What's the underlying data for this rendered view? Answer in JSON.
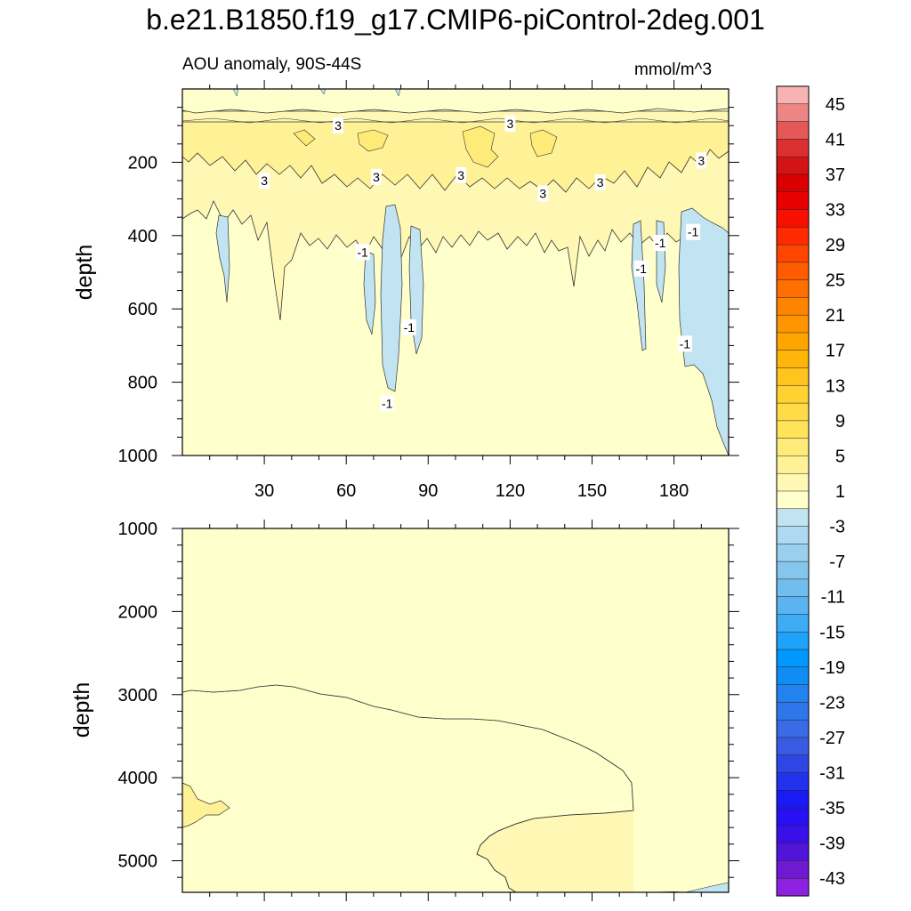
{
  "figure": {
    "title": "b.e21.B1850.f19_g17.CMIP6-piControl-2deg.001",
    "subtitle": "AOU anomaly, 90S-44S",
    "units": "mmol/m^3"
  },
  "chart_data": [
    {
      "type": "contour",
      "panel": "upper",
      "title": "AOU anomaly, 90S-44S",
      "xlabel": "",
      "ylabel": "depth",
      "xlim": [
        0,
        200
      ],
      "ylim": [
        1000,
        0
      ],
      "xticks": [
        30,
        60,
        90,
        120,
        150,
        180
      ],
      "yticks": [
        200,
        400,
        600,
        800,
        1000
      ],
      "contour_labels": [
        {
          "x": 57,
          "y": 100,
          "text": "3"
        },
        {
          "x": 30,
          "y": 250,
          "text": "3"
        },
        {
          "x": 71,
          "y": 240,
          "text": "3"
        },
        {
          "x": 120,
          "y": 95,
          "text": "3"
        },
        {
          "x": 102,
          "y": 235,
          "text": "3"
        },
        {
          "x": 132,
          "y": 285,
          "text": "3"
        },
        {
          "x": 153,
          "y": 255,
          "text": "3"
        },
        {
          "x": 190,
          "y": 195,
          "text": "3"
        },
        {
          "x": 66,
          "y": 445,
          "text": "-1"
        },
        {
          "x": 83,
          "y": 650,
          "text": "-1"
        },
        {
          "x": 75,
          "y": 858,
          "text": "-1"
        },
        {
          "x": 168,
          "y": 490,
          "text": "-1"
        },
        {
          "x": 175,
          "y": 420,
          "text": "-1"
        },
        {
          "x": 187,
          "y": 390,
          "text": "-1"
        },
        {
          "x": 184,
          "y": 695,
          "text": "-1"
        }
      ]
    },
    {
      "type": "contour",
      "panel": "lower",
      "xlabel": "",
      "ylabel": "depth",
      "xlim": [
        0,
        200
      ],
      "ylim": [
        5380,
        1000
      ],
      "yticks": [
        1000,
        2000,
        3000,
        4000,
        5000
      ]
    }
  ],
  "colorbar": {
    "labels": [
      "45",
      "41",
      "37",
      "33",
      "29",
      "25",
      "21",
      "17",
      "13",
      "9",
      "5",
      "1",
      "-3",
      "-7",
      "-11",
      "-15",
      "-19",
      "-23",
      "-27",
      "-31",
      "-35",
      "-39",
      "-43"
    ],
    "colors": [
      "#f8b2b2",
      "#ee8585",
      "#e45858",
      "#dc3030",
      "#d31414",
      "#d80000",
      "#e80000",
      "#f70f00",
      "#ff2a00",
      "#ff4600",
      "#ff5c00",
      "#ff7000",
      "#ff8400",
      "#ff9500",
      "#ffa500",
      "#ffb50a",
      "#ffc41e",
      "#ffd232",
      "#ffdc46",
      "#ffe45a",
      "#ffeb78",
      "#fff296",
      "#fff7b4",
      "#ffffcc",
      "#c2e4f2",
      "#aed9f0",
      "#9ad0ed",
      "#86c6ec",
      "#70bdee",
      "#5ab4f1",
      "#3eabf5",
      "#1ea3fa",
      "#0098ff",
      "#108cf5",
      "#2282ee",
      "#2e77ea",
      "#3a6ae6",
      "#3a5ae2",
      "#2e47e4",
      "#2232ec",
      "#1a1af5",
      "#2810f4",
      "#3a10e8",
      "#5214d8",
      "#6e1ad0",
      "#8c22e0"
    ]
  }
}
